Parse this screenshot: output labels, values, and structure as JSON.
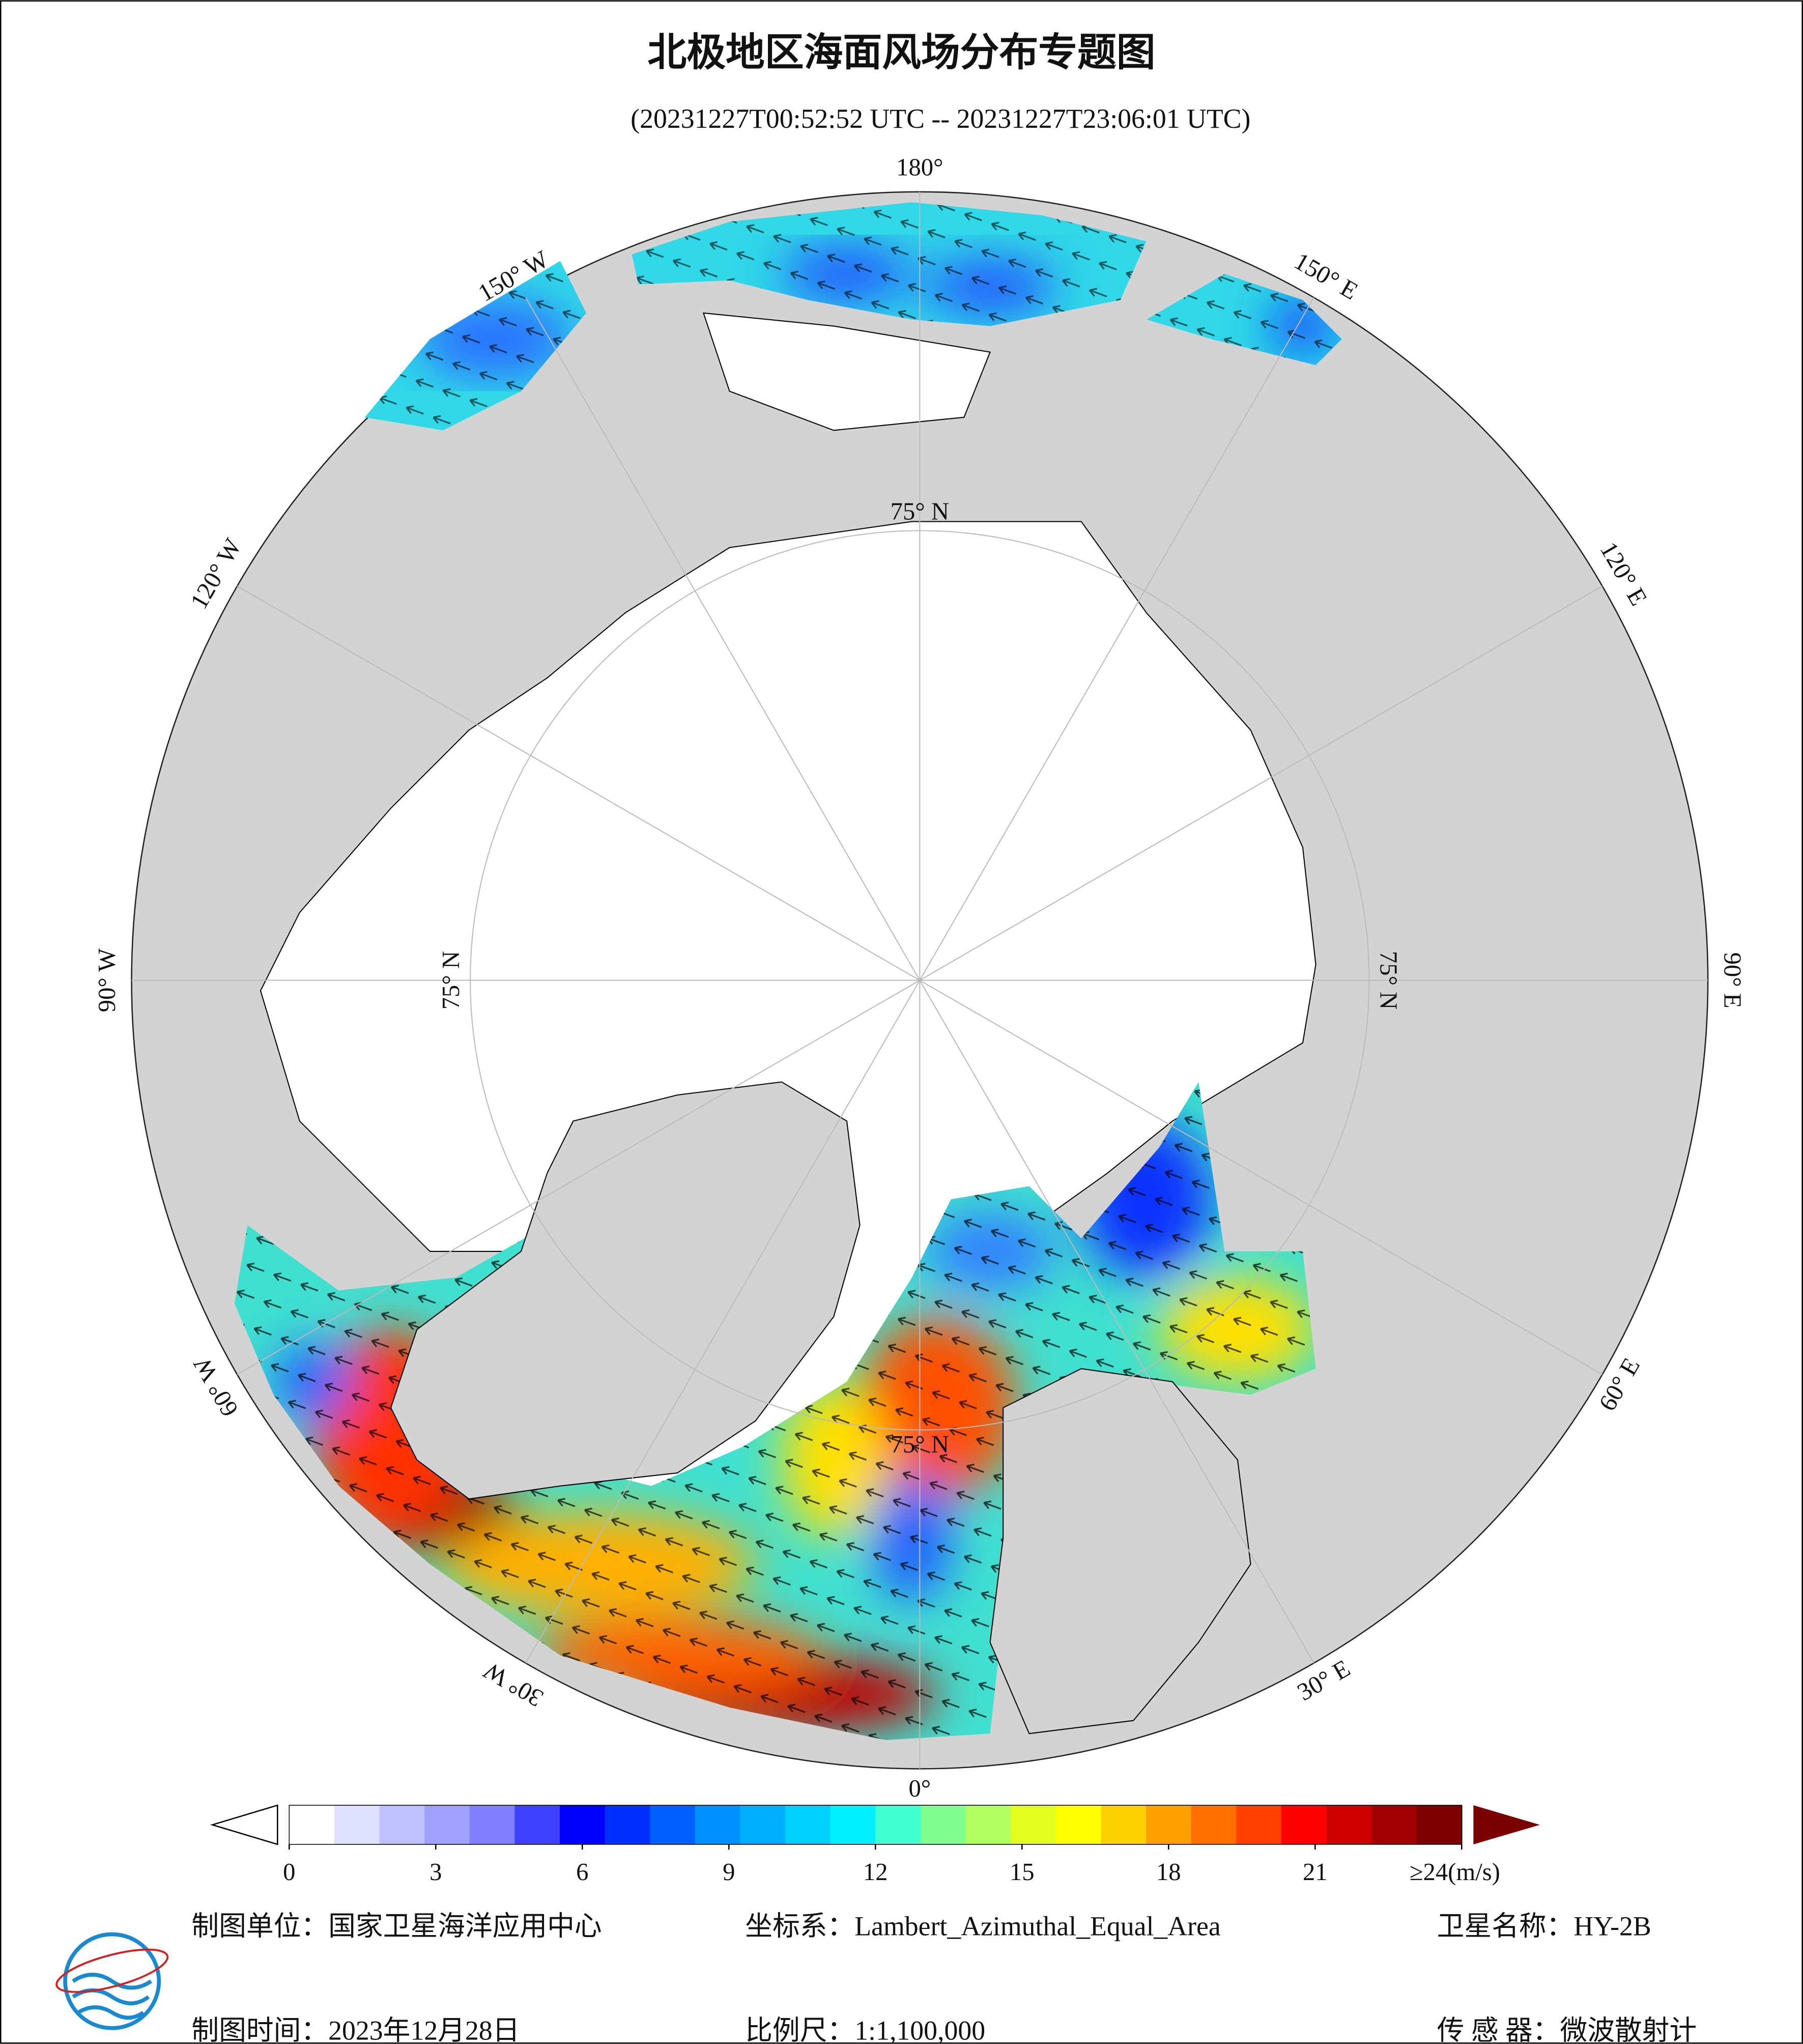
{
  "header": {
    "title": "北极地区海面风场分布专题图",
    "subtitle": "(20231227T00:52:52 UTC -- 20231227T23:06:01 UTC)"
  },
  "map": {
    "longitude_labels": [
      "180°",
      "150° E",
      "120° E",
      "90° E",
      "60° E",
      "30° E",
      "0°",
      "30° W",
      "60° W",
      "90° W",
      "120° W",
      "150° W"
    ],
    "latitude_labels": [
      "75° N",
      "75° N",
      "75° N",
      "75° N"
    ]
  },
  "colorbar": {
    "range": [
      0,
      24
    ],
    "ticks": [
      0,
      3,
      6,
      9,
      12,
      15,
      18,
      21,
      {
        "value": 24,
        "label": "≥24(m/s)"
      }
    ],
    "colors": [
      "#ffffff",
      "#e0e0ff",
      "#c0c0ff",
      "#a0a0ff",
      "#8080ff",
      "#4040ff",
      "#0000ff",
      "#0030ff",
      "#0060ff",
      "#0090ff",
      "#00b0ff",
      "#00d0ff",
      "#00f0ff",
      "#40ffd0",
      "#80ff90",
      "#b0ff60",
      "#e0ff20",
      "#ffff00",
      "#ffd000",
      "#ffa000",
      "#ff7000",
      "#ff4000",
      "#ff0000",
      "#d00000",
      "#a00000",
      "#800000"
    ],
    "under_color": "#ffffff",
    "over_color": "#7a0000"
  },
  "footer": {
    "unit": "制图单位：国家卫星海洋应用中心",
    "projection": "坐标系：Lambert_Azimuthal_Equal_Area",
    "satellite": "卫星名称：HY-2B",
    "date": "制图时间：2023年12月28日",
    "scale": "比例尺：1:1,100,000",
    "sensor": "传 感 器：微波散射计"
  }
}
